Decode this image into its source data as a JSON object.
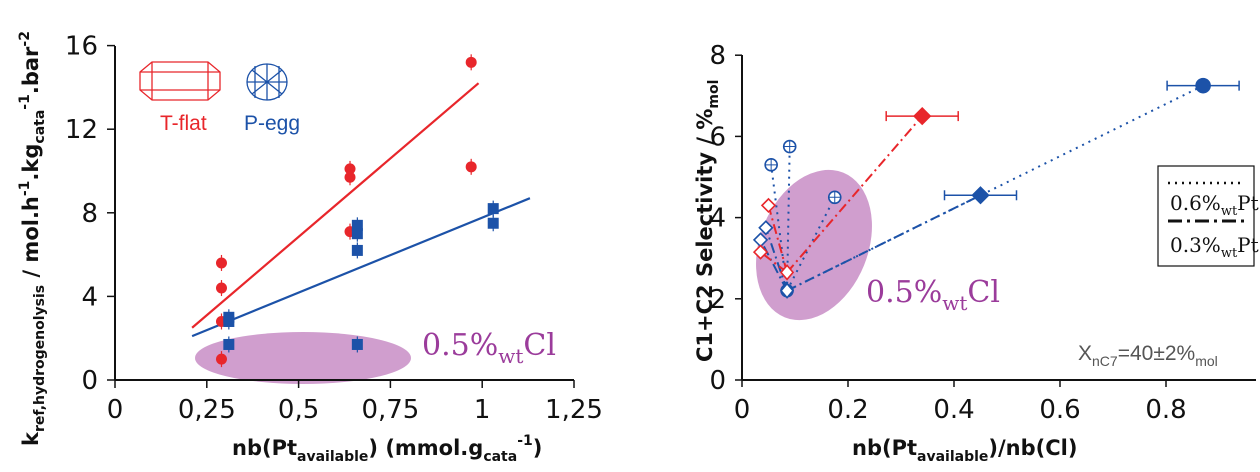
{
  "colors": {
    "red": "#e8262b",
    "blue": "#1c52a8",
    "purple_fill": "#c88dc6",
    "purple_text": "#9b3c9b",
    "gray": "#555555"
  },
  "chart_data": [
    {
      "type": "scatter",
      "title": "",
      "xlabel": {
        "main": "nb(Pt",
        "sub": "available",
        "mid": ") (mmol.g",
        "sub2": "cata",
        "sup": "-1",
        "end": ")"
      },
      "ylabel": {
        "a": "k",
        "a_sub": "ref,hydrogenolysis",
        "b": " / mol.h",
        "b_sup": "-1",
        "c": ".kg",
        "c_sub": "cata",
        "c_sup": "-1",
        "d": ".bar",
        "d_sup": "-2"
      },
      "xlim": [
        0,
        1.25
      ],
      "ylim": [
        0,
        16
      ],
      "xticks": [
        "0",
        "0,25",
        "0,5",
        "0,75",
        "1",
        "1,25"
      ],
      "yticks": [
        "0",
        "4",
        "8",
        "12",
        "16"
      ],
      "legend": {
        "position": "top-left",
        "entries": [
          {
            "name": "T-flat",
            "color": "#e8262b"
          },
          {
            "name": "P-egg",
            "color": "#1c52a8"
          }
        ]
      },
      "annotation": {
        "main": "0.5%",
        "sub": "wt",
        "end": "Cl"
      },
      "series": [
        {
          "name": "T-flat",
          "color": "#e8262b",
          "marker": "circle",
          "points": [
            {
              "x": 0.29,
              "y": 5.6
            },
            {
              "x": 0.29,
              "y": 4.4
            },
            {
              "x": 0.29,
              "y": 2.8
            },
            {
              "x": 0.29,
              "y": 1.0
            },
            {
              "x": 0.64,
              "y": 10.1
            },
            {
              "x": 0.64,
              "y": 9.7
            },
            {
              "x": 0.64,
              "y": 7.1
            },
            {
              "x": 0.97,
              "y": 15.2
            },
            {
              "x": 0.97,
              "y": 10.2
            }
          ],
          "fit": [
            {
              "x": 0.21,
              "y": 2.5
            },
            {
              "x": 0.99,
              "y": 14.2
            }
          ]
        },
        {
          "name": "P-egg",
          "color": "#1c52a8",
          "marker": "square",
          "points": [
            {
              "x": 0.31,
              "y": 3.0
            },
            {
              "x": 0.31,
              "y": 2.8
            },
            {
              "x": 0.31,
              "y": 1.7
            },
            {
              "x": 0.66,
              "y": 7.4
            },
            {
              "x": 0.66,
              "y": 7.0
            },
            {
              "x": 0.66,
              "y": 6.2
            },
            {
              "x": 0.66,
              "y": 1.7
            },
            {
              "x": 1.03,
              "y": 8.2
            },
            {
              "x": 1.03,
              "y": 7.5
            }
          ],
          "fit": [
            {
              "x": 0.21,
              "y": 2.1
            },
            {
              "x": 1.13,
              "y": 8.7
            }
          ]
        }
      ]
    },
    {
      "type": "line",
      "title": "",
      "xlabel": {
        "main": "nb(Pt",
        "sub": "available",
        "end": ")/nb(Cl)"
      },
      "ylabel": {
        "a": "C1+C2 Selectivity / %",
        "a_sub": "mol"
      },
      "xlim": [
        0,
        0.95
      ],
      "ylim": [
        0,
        8
      ],
      "xticks": [
        "0",
        "0.2",
        "0.4",
        "0.6",
        "0.8"
      ],
      "yticks": [
        "0",
        "2",
        "4",
        "6",
        "8"
      ],
      "legend": {
        "position": "right",
        "entries": [
          {
            "style": "dotted",
            "text": "0.6%",
            "sub": "wt",
            "end": "Pt"
          },
          {
            "style": "dash-dot",
            "text": "0.3%",
            "sub": "wt",
            "end": "Pt"
          }
        ]
      },
      "annotation": {
        "main": "0.5%",
        "sub": "wt",
        "end": "Cl"
      },
      "conversion_note": {
        "main": "X",
        "sub": "nC7",
        "mid": "=40±2%",
        "sub2": "mol"
      },
      "series": [
        {
          "group": "0.6%wt Pt",
          "color": "#1c52a8",
          "style": "dotted",
          "marker": "circle",
          "hub": {
            "x": 0.085,
            "y": 2.2
          },
          "points": [
            {
              "x": 0.055,
              "y": 5.3,
              "fill": "open"
            },
            {
              "x": 0.09,
              "y": 5.75,
              "fill": "open"
            },
            {
              "x": 0.175,
              "y": 4.5,
              "fill": "open"
            },
            {
              "x": 0.87,
              "y": 7.25,
              "fill": "filled"
            }
          ]
        },
        {
          "group": "0.3%wt Pt",
          "color": "#1c52a8",
          "style": "dash-dot",
          "marker": "diamond",
          "hub": {
            "x": 0.085,
            "y": 2.2
          },
          "points": [
            {
              "x": 0.035,
              "y": 3.45,
              "fill": "open"
            },
            {
              "x": 0.045,
              "y": 3.75,
              "fill": "open"
            },
            {
              "x": 0.45,
              "y": 4.55,
              "fill": "filled"
            }
          ]
        },
        {
          "group": "0.3%wt Pt",
          "color": "#e8262b",
          "style": "dash-dot",
          "marker": "diamond",
          "hub": {
            "x": 0.085,
            "y": 2.65
          },
          "points": [
            {
              "x": 0.035,
              "y": 3.15,
              "fill": "open"
            },
            {
              "x": 0.05,
              "y": 4.3,
              "fill": "open"
            },
            {
              "x": 0.34,
              "y": 6.5,
              "fill": "filled"
            }
          ]
        }
      ]
    }
  ]
}
